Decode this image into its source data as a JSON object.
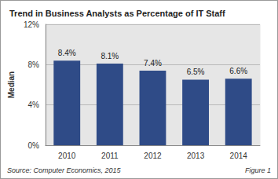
{
  "chart_data": {
    "type": "bar",
    "title": "Trend in Business Analysts as Percentage of IT Staff",
    "y_label": "Median",
    "categories": [
      "2010",
      "2011",
      "2012",
      "2013",
      "2014"
    ],
    "values": [
      8.4,
      8.1,
      7.4,
      6.5,
      6.6
    ],
    "value_labels": [
      "8.4%",
      "8.1%",
      "7.4%",
      "6.5%",
      "6.6%"
    ],
    "color": "#2f4b87",
    "ylim": [
      0,
      12
    ],
    "yticks": [
      {
        "value": 0,
        "label": "0%"
      },
      {
        "value": 4,
        "label": "4%"
      },
      {
        "value": 8,
        "label": "8%"
      },
      {
        "value": 12,
        "label": "12%"
      }
    ],
    "grid": true,
    "data_labels": true,
    "annotations": [
      "Source: Computer Economics, 2015",
      "Figure 1"
    ]
  }
}
